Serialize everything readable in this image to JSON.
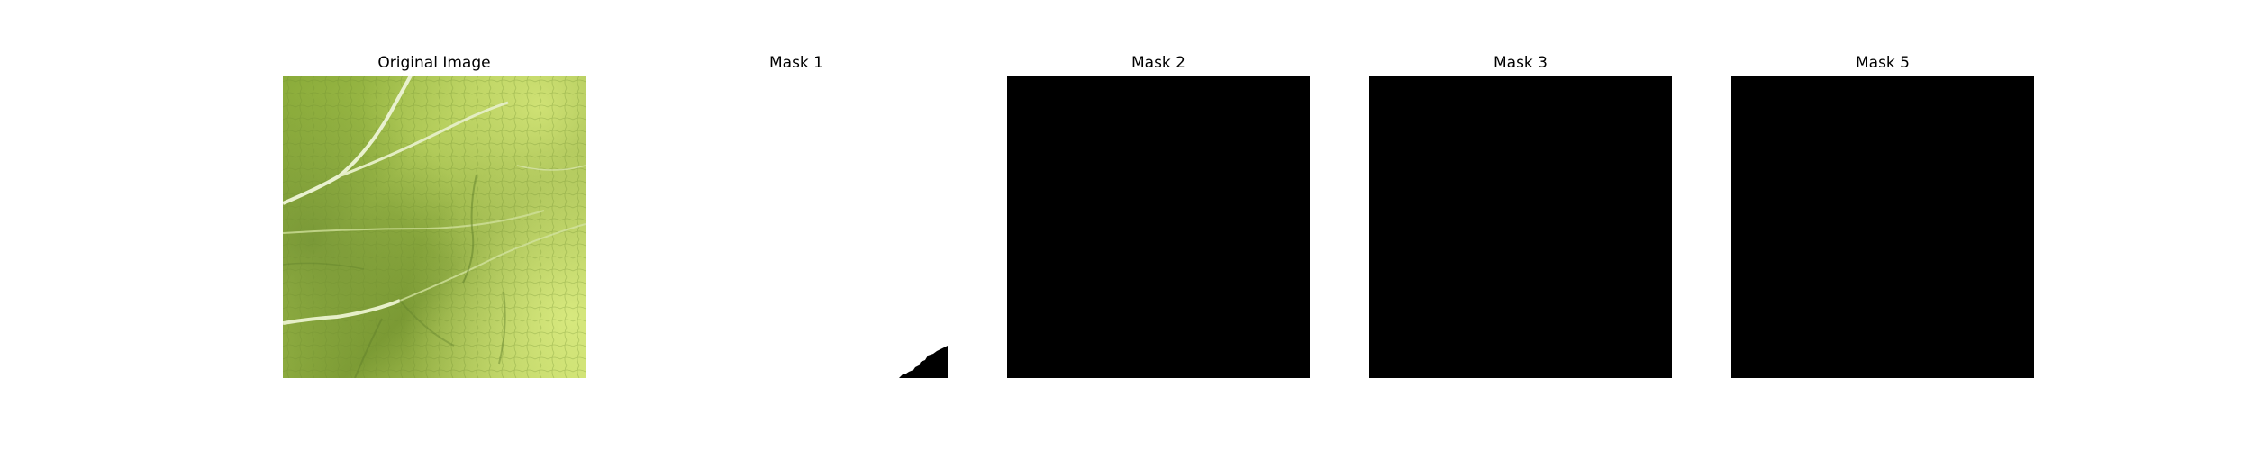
{
  "figure": {
    "panels": [
      {
        "title": "Original Image",
        "content": "leaf-photo"
      },
      {
        "title": "Mask 1",
        "content": "mask-mostly-white"
      },
      {
        "title": "Mask 2",
        "content": "mask-black"
      },
      {
        "title": "Mask 3",
        "content": "mask-black"
      },
      {
        "title": "Mask 5",
        "content": "mask-black"
      }
    ],
    "colors": {
      "background": "#ffffff",
      "mask_on": "#ffffff",
      "mask_off": "#000000",
      "leaf_light": "#c9df6a",
      "leaf_mid": "#9fbd45",
      "leaf_dark": "#5f7f2a",
      "vein": "#e6efc8"
    }
  }
}
